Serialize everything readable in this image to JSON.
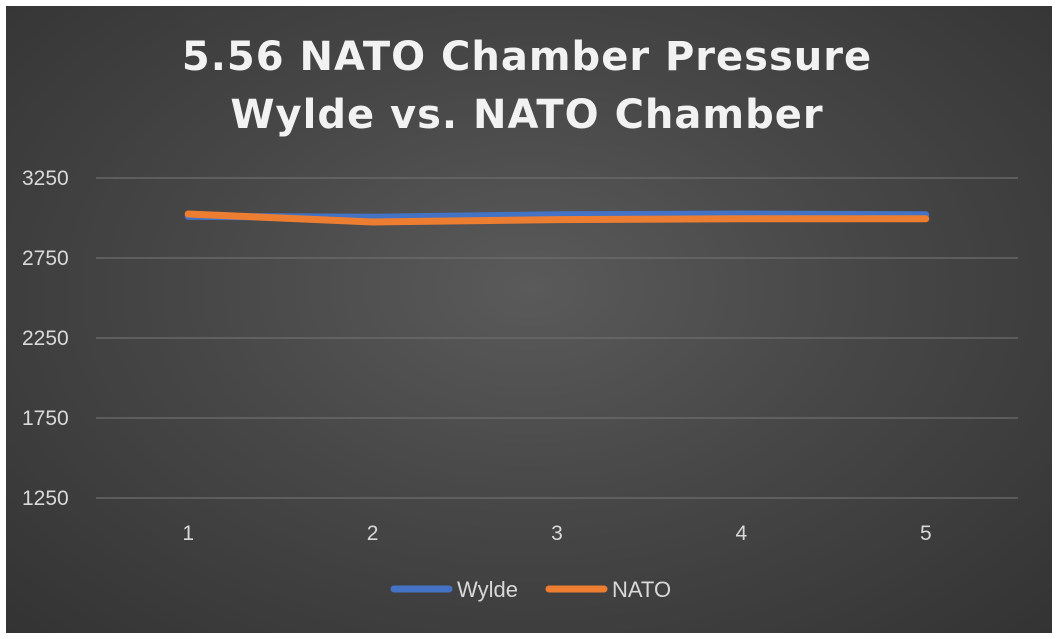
{
  "chart_data": {
    "type": "line",
    "title_lines": [
      "5.56 NATO Chamber Pressure",
      "Wylde vs. NATO Chamber"
    ],
    "xlabel": "",
    "ylabel": "",
    "categories": [
      "1",
      "2",
      "3",
      "4",
      "5"
    ],
    "ylim": [
      1250,
      3250
    ],
    "yticks": [
      "3250",
      "2750",
      "2250",
      "1750",
      "1250"
    ],
    "grid": true,
    "legend_position": "bottom",
    "series": [
      {
        "name": "Wylde",
        "color": "#4472C4",
        "values": [
          3010,
          3005,
          3020,
          3025,
          3020
        ]
      },
      {
        "name": "NATO",
        "color": "#ED7D31",
        "values": [
          3025,
          2975,
          2990,
          2995,
          2995
        ]
      }
    ]
  }
}
